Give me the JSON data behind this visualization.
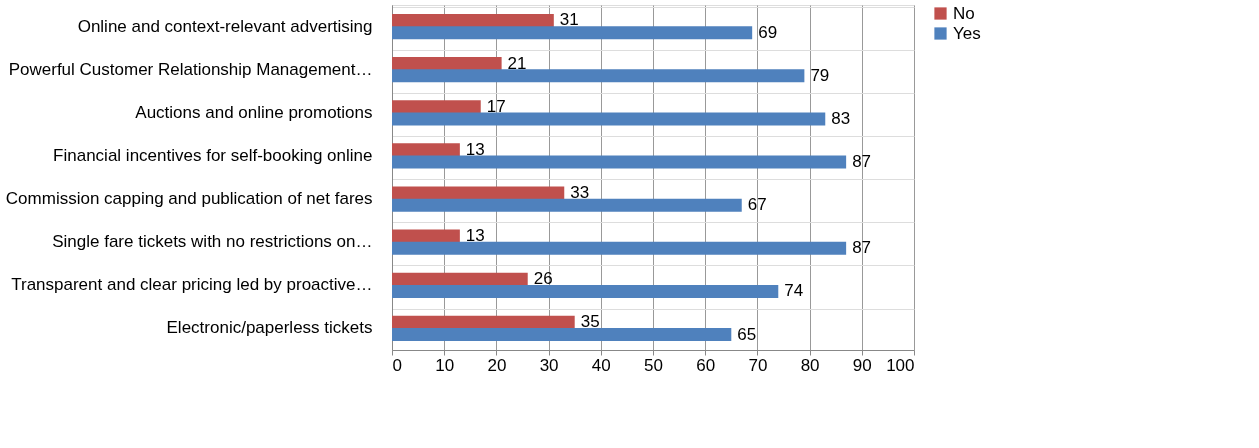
{
  "chart_data": {
    "type": "bar",
    "orientation": "horizontal",
    "categories": [
      "Online and context-relevant advertising",
      "Powerful Customer Relationship Management…",
      "Auctions and online promotions",
      "Financial incentives for self-booking online",
      "Commission capping and publication of net fares",
      "Single fare tickets with no restrictions on…",
      "Transparent and clear pricing led by proactive…",
      "Electronic/paperless tickets"
    ],
    "series": [
      {
        "name": "No",
        "color": "#c0504d",
        "values": [
          31,
          21,
          17,
          13,
          33,
          13,
          26,
          35
        ]
      },
      {
        "name": "Yes",
        "color": "#4f81bd",
        "values": [
          69,
          79,
          83,
          87,
          67,
          87,
          74,
          65
        ]
      }
    ],
    "xlim": [
      0,
      100
    ],
    "xticks": [
      0,
      10,
      20,
      30,
      40,
      50,
      60,
      70,
      80,
      90,
      100
    ],
    "grid": true,
    "legend": "right",
    "data_labels": true
  }
}
